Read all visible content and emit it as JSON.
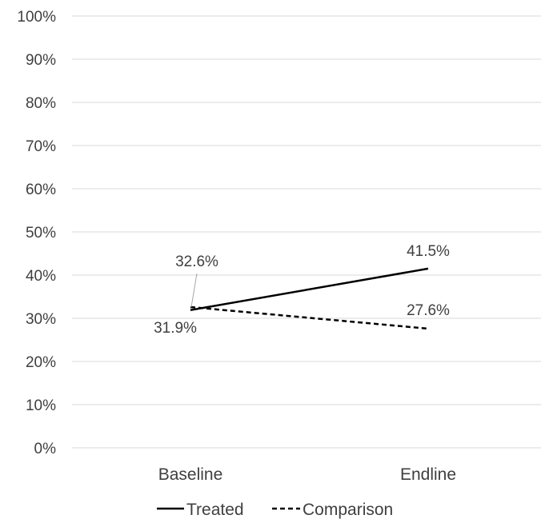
{
  "chart_data": {
    "type": "line",
    "categories": [
      "Baseline",
      "Endline"
    ],
    "series": [
      {
        "name": "Treated",
        "values": [
          31.9,
          41.5
        ],
        "labels": [
          "31.9%",
          "41.5%"
        ],
        "line_style": "solid",
        "color": "#000000"
      },
      {
        "name": "Comparison",
        "values": [
          32.6,
          27.6
        ],
        "labels": [
          "32.6%",
          "27.6%"
        ],
        "line_style": "dashed",
        "color": "#000000"
      }
    ],
    "ylim": [
      0,
      100
    ],
    "yticks": [
      0,
      10,
      20,
      30,
      40,
      50,
      60,
      70,
      80,
      90,
      100
    ],
    "ytick_labels": [
      "0%",
      "10%",
      "20%",
      "30%",
      "40%",
      "50%",
      "60%",
      "70%",
      "80%",
      "90%",
      "100%"
    ],
    "grid": true,
    "legend": "bottom"
  }
}
